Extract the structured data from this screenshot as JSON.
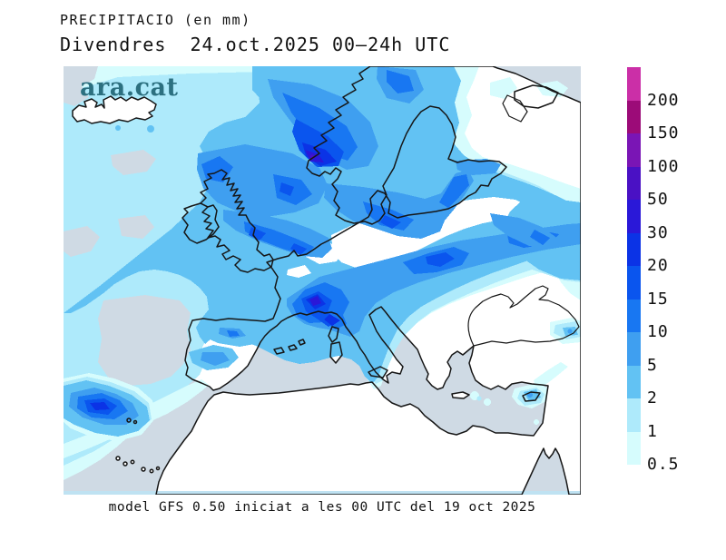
{
  "header": {
    "title": "PRECIPITACIO (en mm)",
    "subtitle": "Divendres  24.oct.2025 00–24h UTC"
  },
  "watermark": {
    "text": "ara.cat",
    "color": "#2c7080"
  },
  "caption": {
    "text": "model GFS 0.50 iniciat a les 00 UTC del 19 oct 2025"
  },
  "legend": {
    "units": "mm",
    "entries": [
      {
        "label": "200",
        "color": "#cb2fa7"
      },
      {
        "label": "150",
        "color": "#9c0b78"
      },
      {
        "label": "100",
        "color": "#7a15b5"
      },
      {
        "label": "50",
        "color": "#4a11c4"
      },
      {
        "label": "30",
        "color": "#2a18d8"
      },
      {
        "label": "20",
        "color": "#0b33e6"
      },
      {
        "label": "15",
        "color": "#0a55ee"
      },
      {
        "label": "10",
        "color": "#1877f2"
      },
      {
        "label": "5",
        "color": "#3f9ff0"
      },
      {
        "label": "2",
        "color": "#62c2f3"
      },
      {
        "label": "1",
        "color": "#aeeafb"
      },
      {
        "label": "0.5",
        "color": "#d6fcfd"
      }
    ]
  },
  "map": {
    "region": "Europe / North Atlantic / Mediterranean",
    "sea_color": "#cfdae4",
    "land_color": "#ffffff",
    "coast_color": "#161616",
    "levels_mm": [
      0.5,
      1,
      2,
      5,
      10,
      15,
      20,
      30,
      50,
      100,
      150,
      200
    ]
  }
}
